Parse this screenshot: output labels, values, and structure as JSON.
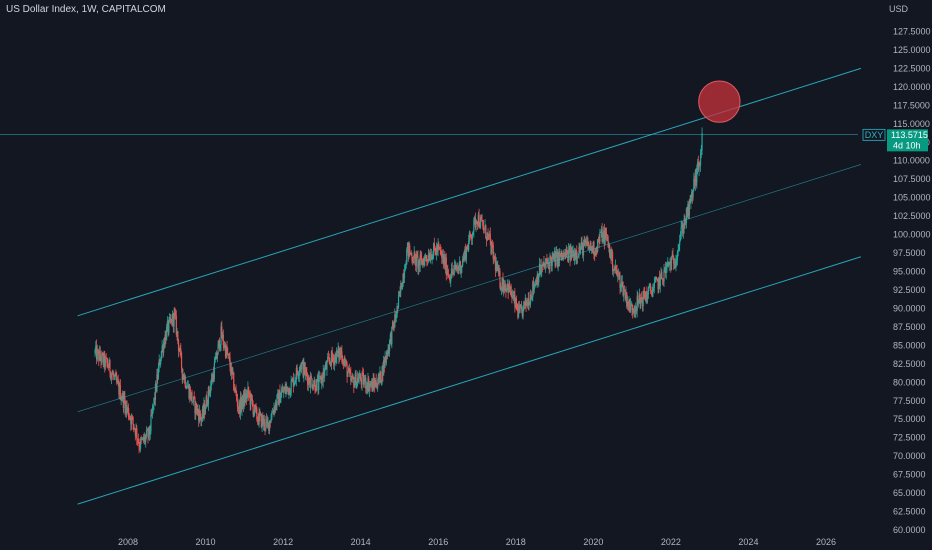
{
  "header": {
    "title": "US Dollar Index, 1W, CAPITALCOM",
    "currency": "USD"
  },
  "price_tag": {
    "symbol": "DXY",
    "price": "113.5715",
    "countdown": "4d 10h"
  },
  "colors": {
    "background": "#131722",
    "up": "#26a69a",
    "down": "#ef5350",
    "channel": "#2bb5c9",
    "circle_fill": "#c8323a",
    "tag_bg": "#089981"
  },
  "chart_data": {
    "type": "candlestick",
    "title": "US Dollar Index, 1W, CAPITALCOM",
    "y_unit": "USD",
    "ylim": [
      60,
      130
    ],
    "xlim": [
      2006.7,
      2027.0
    ],
    "y_ticks": [
      "60.0000",
      "62.5000",
      "65.0000",
      "67.5000",
      "70.0000",
      "72.5000",
      "75.0000",
      "77.5000",
      "80.0000",
      "82.5000",
      "85.0000",
      "87.5000",
      "90.0000",
      "92.5000",
      "95.0000",
      "97.5000",
      "100.0000",
      "102.5000",
      "105.0000",
      "107.5000",
      "110.0000",
      "112.5000",
      "115.0000",
      "117.5000",
      "120.0000",
      "122.5000",
      "125.0000",
      "127.5000"
    ],
    "x_ticks": [
      "2008",
      "2010",
      "2012",
      "2014",
      "2016",
      "2018",
      "2020",
      "2022",
      "2024",
      "2026"
    ],
    "price_path": [
      [
        2007.15,
        84.0
      ],
      [
        2007.5,
        82.2
      ],
      [
        2007.85,
        78.0
      ],
      [
        2008.2,
        73.5
      ],
      [
        2008.3,
        71.5
      ],
      [
        2008.55,
        73.0
      ],
      [
        2008.85,
        84.0
      ],
      [
        2009.0,
        87.0
      ],
      [
        2009.2,
        89.0
      ],
      [
        2009.4,
        81.5
      ],
      [
        2009.7,
        77.0
      ],
      [
        2009.9,
        75.0
      ],
      [
        2010.15,
        80.0
      ],
      [
        2010.4,
        86.5
      ],
      [
        2010.6,
        83.0
      ],
      [
        2010.85,
        76.5
      ],
      [
        2011.1,
        78.5
      ],
      [
        2011.3,
        75.5
      ],
      [
        2011.6,
        74.0
      ],
      [
        2011.75,
        76.5
      ],
      [
        2011.95,
        78.5
      ],
      [
        2012.2,
        79.5
      ],
      [
        2012.45,
        82.5
      ],
      [
        2012.65,
        80.5
      ],
      [
        2012.9,
        79.5
      ],
      [
        2013.2,
        83.0
      ],
      [
        2013.5,
        84.0
      ],
      [
        2013.75,
        80.0
      ],
      [
        2013.95,
        80.5
      ],
      [
        2014.3,
        79.5
      ],
      [
        2014.5,
        80.5
      ],
      [
        2014.75,
        85.5
      ],
      [
        2014.95,
        90.0
      ],
      [
        2015.2,
        98.0
      ],
      [
        2015.5,
        96.0
      ],
      [
        2015.8,
        97.5
      ],
      [
        2016.0,
        98.0
      ],
      [
        2016.3,
        94.5
      ],
      [
        2016.6,
        96.0
      ],
      [
        2016.85,
        100.0
      ],
      [
        2017.0,
        102.5
      ],
      [
        2017.3,
        99.5
      ],
      [
        2017.6,
        93.5
      ],
      [
        2017.8,
        93.0
      ],
      [
        2018.1,
        89.0
      ],
      [
        2018.35,
        91.5
      ],
      [
        2018.6,
        95.0
      ],
      [
        2018.9,
        96.5
      ],
      [
        2019.2,
        97.0
      ],
      [
        2019.5,
        97.5
      ],
      [
        2019.8,
        98.5
      ],
      [
        2020.05,
        98.0
      ],
      [
        2020.2,
        100.0
      ],
      [
        2020.35,
        99.5
      ],
      [
        2020.5,
        96.0
      ],
      [
        2020.75,
        93.0
      ],
      [
        2020.95,
        90.0
      ],
      [
        2021.1,
        90.5
      ],
      [
        2021.3,
        91.5
      ],
      [
        2021.5,
        92.5
      ],
      [
        2021.75,
        94.0
      ],
      [
        2021.95,
        96.0
      ],
      [
        2022.1,
        96.5
      ],
      [
        2022.3,
        101.0
      ],
      [
        2022.5,
        104.0
      ],
      [
        2022.6,
        107.0
      ],
      [
        2022.75,
        110.0
      ],
      [
        2022.82,
        113.57
      ]
    ],
    "channel_lines": [
      {
        "name": "upper",
        "from": [
          2006.7,
          89.0
        ],
        "to": [
          2026.9,
          122.5
        ]
      },
      {
        "name": "middle",
        "from": [
          2006.7,
          76.0
        ],
        "to": [
          2026.9,
          109.5
        ]
      },
      {
        "name": "lower",
        "from": [
          2006.7,
          63.5
        ],
        "to": [
          2026.9,
          97.0
        ]
      }
    ],
    "horizontal_line": {
      "y": 113.5715
    },
    "highlight_circle": {
      "center": [
        2023.25,
        118.0
      ],
      "radius_y": 2.8
    }
  }
}
